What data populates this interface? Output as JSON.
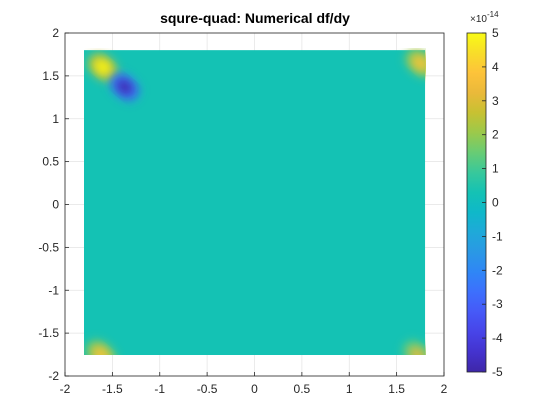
{
  "chart_data": {
    "type": "heatmap",
    "title": "squre-quad: Numerical df/dy",
    "xlabel": "",
    "ylabel": "",
    "xlim": [
      -2,
      2
    ],
    "ylim": [
      -2,
      2
    ],
    "x_ticks": [
      "-2",
      "-1.5",
      "-1",
      "-0.5",
      "0",
      "0.5",
      "1",
      "1.5",
      "2"
    ],
    "y_ticks": [
      "2",
      "1.5",
      "1",
      "0.5",
      "0",
      "-0.5",
      "-1",
      "-1.5",
      "-2"
    ],
    "grid": true,
    "domain": {
      "xmin": -1.8,
      "xmax": 1.8,
      "ymin": -1.8,
      "ymax": 1.8
    },
    "background_value": 0,
    "features": [
      {
        "x": -1.6,
        "y": 1.6,
        "value": 5
      },
      {
        "x": -1.37,
        "y": 1.37,
        "value": -5
      },
      {
        "x": 1.75,
        "y": 1.65,
        "value": 4
      },
      {
        "x": -1.62,
        "y": -1.75,
        "value": 4
      },
      {
        "x": 1.72,
        "y": -1.75,
        "value": 3
      }
    ],
    "colorbar": {
      "min": -5,
      "max": 5,
      "ticks": [
        "5",
        "4",
        "3",
        "2",
        "1",
        "0",
        "-1",
        "-2",
        "-3",
        "-4",
        "-5"
      ],
      "exponent": "×10",
      "exponent_power": "-14",
      "colormap": "parula",
      "colors": [
        "#3e26a8",
        "#4433ce",
        "#4744e8",
        "#4659f7",
        "#3d6ffd",
        "#2f86f6",
        "#2a98e5",
        "#1fa9d9",
        "#0fb8c9",
        "#14c2b4",
        "#38c89b",
        "#68cc74",
        "#9bc94b",
        "#c7c132",
        "#eab93a",
        "#fdc33a",
        "#f8dd29",
        "#f9fb15"
      ]
    }
  }
}
